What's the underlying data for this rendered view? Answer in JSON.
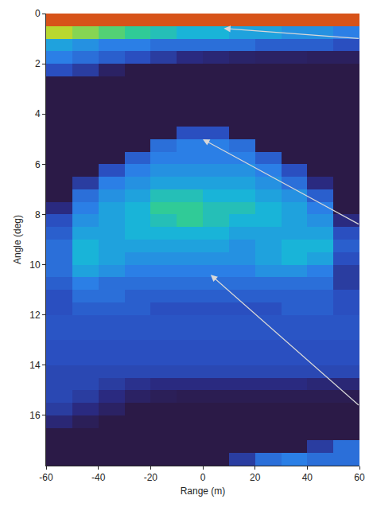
{
  "chart_data": {
    "type": "heatmap",
    "x_label": "Range (m)",
    "y_label": "Angle (deg)",
    "xlim": [
      -60,
      60
    ],
    "xticks": [
      -60,
      -40,
      -20,
      0,
      20,
      40,
      60
    ],
    "ylim": [
      0,
      18
    ],
    "yticks": [
      0,
      2,
      4,
      6,
      8,
      10,
      12,
      14,
      16
    ],
    "grid": false,
    "x": [
      -55,
      -45,
      -35,
      -25,
      -15,
      -5,
      5,
      15,
      25,
      35,
      45,
      55
    ],
    "y": [
      0.25,
      0.75,
      1.25,
      1.75,
      2.25,
      2.75,
      3.25,
      3.75,
      4.25,
      4.75,
      5.25,
      5.75,
      6.25,
      6.75,
      7.25,
      7.75,
      8.25,
      8.75,
      9.25,
      9.75,
      10.25,
      10.75,
      11.25,
      11.75,
      12.25,
      12.75,
      13.25,
      13.75,
      14.25,
      14.75,
      15.25,
      15.75,
      16.25,
      16.75,
      17.25,
      17.75
    ],
    "zlim": [
      0,
      1
    ],
    "z": [
      [
        0.95,
        0.95,
        0.95,
        0.95,
        0.95,
        0.95,
        0.95,
        0.95,
        0.95,
        0.95,
        0.95,
        0.95
      ],
      [
        0.75,
        0.7,
        0.65,
        0.6,
        0.55,
        0.5,
        0.5,
        0.45,
        0.45,
        0.4,
        0.4,
        0.35
      ],
      [
        0.45,
        0.4,
        0.35,
        0.35,
        0.3,
        0.3,
        0.3,
        0.3,
        0.25,
        0.25,
        0.25,
        0.2
      ],
      [
        0.35,
        0.3,
        0.25,
        0.2,
        0.15,
        0.1,
        0.08,
        0.06,
        0.05,
        0.05,
        0.04,
        0.04
      ],
      [
        0.2,
        0.15,
        0.05,
        0,
        0,
        0,
        0,
        0,
        0,
        0,
        0,
        0
      ],
      [
        0,
        0,
        0,
        0,
        0,
        0,
        0,
        0,
        0,
        0,
        0,
        0
      ],
      [
        0,
        0,
        0,
        0,
        0,
        0,
        0,
        0,
        0,
        0,
        0,
        0
      ],
      [
        0,
        0,
        0,
        0,
        0,
        0,
        0,
        0,
        0,
        0,
        0,
        0
      ],
      [
        0,
        0,
        0,
        0,
        0,
        0,
        0,
        0,
        0,
        0,
        0,
        0
      ],
      [
        0,
        0,
        0,
        0,
        0,
        0.2,
        0.2,
        0,
        0,
        0,
        0,
        0
      ],
      [
        0,
        0,
        0,
        0,
        0.3,
        0.35,
        0.35,
        0.3,
        0,
        0,
        0,
        0
      ],
      [
        0,
        0,
        0,
        0.25,
        0.35,
        0.35,
        0.35,
        0.35,
        0.25,
        0,
        0,
        0
      ],
      [
        0,
        0,
        0.2,
        0.35,
        0.4,
        0.4,
        0.4,
        0.4,
        0.35,
        0.2,
        0,
        0
      ],
      [
        0,
        0.15,
        0.35,
        0.4,
        0.45,
        0.45,
        0.45,
        0.45,
        0.4,
        0.3,
        0.1,
        0
      ],
      [
        0,
        0.3,
        0.4,
        0.45,
        0.55,
        0.55,
        0.5,
        0.5,
        0.45,
        0.4,
        0.25,
        0
      ],
      [
        0.1,
        0.35,
        0.45,
        0.5,
        0.6,
        0.6,
        0.55,
        0.55,
        0.5,
        0.45,
        0.35,
        0
      ],
      [
        0.2,
        0.4,
        0.45,
        0.5,
        0.55,
        0.6,
        0.55,
        0.5,
        0.5,
        0.45,
        0.4,
        0.1
      ],
      [
        0.25,
        0.45,
        0.45,
        0.5,
        0.5,
        0.5,
        0.5,
        0.45,
        0.45,
        0.45,
        0.45,
        0.2
      ],
      [
        0.3,
        0.5,
        0.45,
        0.45,
        0.45,
        0.45,
        0.45,
        0.4,
        0.45,
        0.5,
        0.5,
        0.25
      ],
      [
        0.3,
        0.5,
        0.45,
        0.4,
        0.4,
        0.4,
        0.4,
        0.4,
        0.45,
        0.5,
        0.45,
        0.2
      ],
      [
        0.3,
        0.45,
        0.4,
        0.35,
        0.35,
        0.35,
        0.35,
        0.35,
        0.4,
        0.4,
        0.35,
        0.15
      ],
      [
        0.25,
        0.35,
        0.3,
        0.3,
        0.3,
        0.3,
        0.3,
        0.3,
        0.3,
        0.3,
        0.3,
        0.15
      ],
      [
        0.2,
        0.3,
        0.3,
        0.25,
        0.25,
        0.25,
        0.25,
        0.25,
        0.25,
        0.25,
        0.25,
        0.2
      ],
      [
        0.2,
        0.25,
        0.25,
        0.25,
        0.2,
        0.2,
        0.2,
        0.2,
        0.2,
        0.25,
        0.25,
        0.2
      ],
      [
        0.22,
        0.22,
        0.22,
        0.22,
        0.22,
        0.22,
        0.22,
        0.22,
        0.22,
        0.22,
        0.22,
        0.22
      ],
      [
        0.22,
        0.22,
        0.22,
        0.22,
        0.22,
        0.22,
        0.22,
        0.22,
        0.22,
        0.22,
        0.22,
        0.22
      ],
      [
        0.2,
        0.2,
        0.2,
        0.2,
        0.2,
        0.2,
        0.2,
        0.2,
        0.2,
        0.2,
        0.2,
        0.2
      ],
      [
        0.2,
        0.2,
        0.2,
        0.2,
        0.2,
        0.2,
        0.2,
        0.2,
        0.2,
        0.2,
        0.2,
        0.2
      ],
      [
        0.18,
        0.18,
        0.18,
        0.18,
        0.18,
        0.18,
        0.18,
        0.18,
        0.18,
        0.18,
        0.18,
        0.18
      ],
      [
        0.18,
        0.18,
        0.15,
        0.12,
        0.1,
        0.1,
        0.1,
        0.1,
        0.1,
        0.1,
        0.08,
        0.08
      ],
      [
        0.18,
        0.15,
        0.1,
        0.05,
        0.03,
        0.02,
        0.02,
        0.02,
        0.02,
        0.02,
        0.02,
        0.02
      ],
      [
        0.15,
        0.1,
        0.05,
        0,
        0,
        0,
        0,
        0,
        0,
        0,
        0,
        0
      ],
      [
        0.08,
        0.03,
        0,
        0,
        0,
        0,
        0,
        0,
        0,
        0,
        0,
        0
      ],
      [
        0,
        0,
        0,
        0,
        0,
        0,
        0,
        0,
        0,
        0,
        0,
        0
      ],
      [
        0,
        0,
        0,
        0,
        0,
        0,
        0,
        0,
        0,
        0,
        0.15,
        0.3
      ],
      [
        0,
        0,
        0,
        0,
        0,
        0,
        0,
        0.15,
        0.3,
        0.35,
        0.3,
        0.3
      ]
    ]
  }
}
